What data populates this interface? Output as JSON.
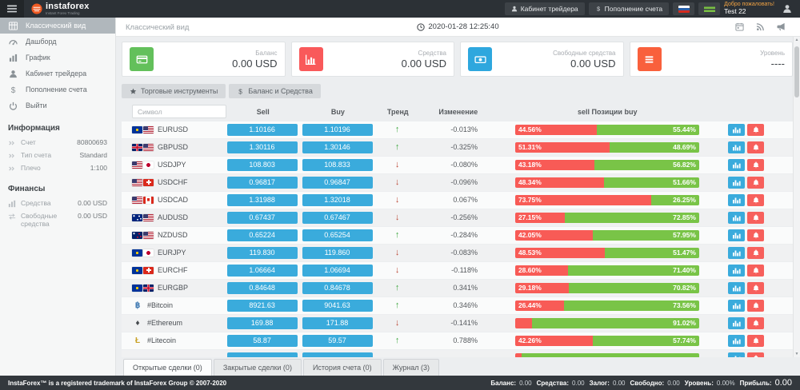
{
  "header": {
    "brand": "instaforex",
    "brand_tagline": "Instant Forex Trading",
    "nav": [
      {
        "label": "Кабинет трейдера",
        "icon": "user-icon"
      },
      {
        "label": "Пополнение счета",
        "icon": "dollar-icon"
      }
    ],
    "flags": [
      {
        "name": "flag-russia-icon",
        "css": "flag-ru"
      },
      {
        "name": "flag-green-icon",
        "css": "flag-green"
      }
    ],
    "welcome_title": "Добро пожаловать!",
    "welcome_user": "Test 22"
  },
  "sidebar": {
    "menu": [
      {
        "label": "Классический вид",
        "icon": "grid-icon",
        "active": true
      },
      {
        "label": "Дашборд",
        "icon": "gauge-icon",
        "active": false
      },
      {
        "label": "График",
        "icon": "chart-icon",
        "active": false
      },
      {
        "label": "Кабинет трейдера",
        "icon": "user-icon",
        "active": false
      },
      {
        "label": "Пополнение счета",
        "icon": "dollar-icon",
        "active": false
      },
      {
        "label": "Выйти",
        "icon": "power-icon",
        "active": false
      }
    ],
    "sections": [
      {
        "title": "Информация",
        "rows": [
          {
            "icon": "chevrons-icon",
            "label": "Счет",
            "value": "80800693"
          },
          {
            "icon": "chevrons-icon",
            "label": "Тип счета",
            "value": "Standard"
          },
          {
            "icon": "chevrons-icon",
            "label": "Плечо",
            "value": "1:100"
          }
        ]
      },
      {
        "title": "Финансы",
        "rows": [
          {
            "icon": "chart-mini-icon",
            "label": "Средства",
            "value": "0.00 USD"
          },
          {
            "icon": "exchange-mini-icon",
            "label": "Свободные средства",
            "value": "0.00 USD"
          }
        ]
      }
    ]
  },
  "topbar": {
    "title": "Классический вид",
    "datetime": "2020-01-28 12:25:40",
    "icons": [
      "calendar-icon",
      "rss-icon",
      "megaphone-icon"
    ]
  },
  "cards": [
    {
      "label": "Баланс",
      "value": "0.00 USD",
      "icon": "credit-card-icon",
      "color": "#63c05b"
    },
    {
      "label": "Средства",
      "value": "0.00 USD",
      "icon": "bar-chart-icon",
      "color": "#f9595a"
    },
    {
      "label": "Свободные средства",
      "value": "0.00 USD",
      "icon": "banknote-icon",
      "color": "#2ea7de"
    },
    {
      "label": "Уровень",
      "value": "----",
      "icon": "menu-icon",
      "color": "#f9603c"
    }
  ],
  "filters": [
    {
      "label": "Торговые инструменты",
      "icon": "star-icon"
    },
    {
      "label": "Баланс и Средства",
      "icon": "dollar-icon"
    }
  ],
  "table": {
    "search_placeholder": "Символ",
    "col_sell": "Sell",
    "col_buy": "Buy",
    "col_trend": "Тренд",
    "col_change": "Изменение",
    "col_positions": "sell Позиции buy",
    "rows": [
      {
        "symbol": "EURUSD",
        "flags": [
          "eu",
          "us"
        ],
        "crypto": "",
        "sell": "1.10166",
        "buy": "1.10196",
        "trend": "up",
        "change": "-0.013%",
        "sell_pct": 44.56,
        "buy_pct": 55.44,
        "sell_label": "44.56%",
        "buy_label": "55.44%"
      },
      {
        "symbol": "GBPUSD",
        "flags": [
          "gb",
          "us"
        ],
        "crypto": "",
        "sell": "1.30116",
        "buy": "1.30146",
        "trend": "up",
        "change": "-0.325%",
        "sell_pct": 51.31,
        "buy_pct": 48.69,
        "sell_label": "51.31%",
        "buy_label": "48.69%"
      },
      {
        "symbol": "USDJPY",
        "flags": [
          "us",
          "jp"
        ],
        "crypto": "",
        "sell": "108.803",
        "buy": "108.833",
        "trend": "down",
        "change": "-0.080%",
        "sell_pct": 43.18,
        "buy_pct": 56.82,
        "sell_label": "43.18%",
        "buy_label": "56.82%"
      },
      {
        "symbol": "USDCHF",
        "flags": [
          "us",
          "ch"
        ],
        "crypto": "",
        "sell": "0.96817",
        "buy": "0.96847",
        "trend": "down",
        "change": "-0.096%",
        "sell_pct": 48.34,
        "buy_pct": 51.66,
        "sell_label": "48.34%",
        "buy_label": "51.66%"
      },
      {
        "symbol": "USDCAD",
        "flags": [
          "us",
          "ca"
        ],
        "crypto": "",
        "sell": "1.31988",
        "buy": "1.32018",
        "trend": "down",
        "change": "0.067%",
        "sell_pct": 73.75,
        "buy_pct": 26.25,
        "sell_label": "73.75%",
        "buy_label": "26.25%"
      },
      {
        "symbol": "AUDUSD",
        "flags": [
          "au",
          "us"
        ],
        "crypto": "",
        "sell": "0.67437",
        "buy": "0.67467",
        "trend": "down",
        "change": "-0.256%",
        "sell_pct": 27.15,
        "buy_pct": 72.85,
        "sell_label": "27.15%",
        "buy_label": "72.85%"
      },
      {
        "symbol": "NZDUSD",
        "flags": [
          "nz",
          "us"
        ],
        "crypto": "",
        "sell": "0.65224",
        "buy": "0.65254",
        "trend": "up",
        "change": "-0.284%",
        "sell_pct": 42.05,
        "buy_pct": 57.95,
        "sell_label": "42.05%",
        "buy_label": "57.95%"
      },
      {
        "symbol": "EURJPY",
        "flags": [
          "eu",
          "jp"
        ],
        "crypto": "",
        "sell": "119.830",
        "buy": "119.860",
        "trend": "down",
        "change": "-0.083%",
        "sell_pct": 48.53,
        "buy_pct": 51.47,
        "sell_label": "48.53%",
        "buy_label": "51.47%"
      },
      {
        "symbol": "EURCHF",
        "flags": [
          "eu",
          "ch"
        ],
        "crypto": "",
        "sell": "1.06664",
        "buy": "1.06694",
        "trend": "down",
        "change": "-0.118%",
        "sell_pct": 28.6,
        "buy_pct": 71.4,
        "sell_label": "28.60%",
        "buy_label": "71.40%"
      },
      {
        "symbol": "EURGBP",
        "flags": [
          "eu",
          "gb"
        ],
        "crypto": "",
        "sell": "0.84648",
        "buy": "0.84678",
        "trend": "up",
        "change": "0.341%",
        "sell_pct": 29.18,
        "buy_pct": 70.82,
        "sell_label": "29.18%",
        "buy_label": "70.82%"
      },
      {
        "symbol": "#Bitcoin",
        "flags": [],
        "crypto": "btc",
        "sell": "8921.63",
        "buy": "9041.63",
        "trend": "up",
        "change": "0.346%",
        "sell_pct": 26.44,
        "buy_pct": 73.56,
        "sell_label": "26.44%",
        "buy_label": "73.56%"
      },
      {
        "symbol": "#Ethereum",
        "flags": [],
        "crypto": "eth",
        "sell": "169.88",
        "buy": "171.88",
        "trend": "down",
        "change": "-0.141%",
        "sell_pct": 8.98,
        "buy_pct": 91.02,
        "sell_label": "",
        "buy_label": "91.02%"
      },
      {
        "symbol": "#Litecoin",
        "flags": [],
        "crypto": "ltc",
        "sell": "58.87",
        "buy": "59.57",
        "trend": "up",
        "change": "0.788%",
        "sell_pct": 42.26,
        "buy_pct": 57.74,
        "sell_label": "42.26%",
        "buy_label": "57.74%"
      },
      {
        "symbol": "",
        "flags": [],
        "crypto": "",
        "sell": "",
        "buy": "",
        "trend": "",
        "change": "",
        "sell_pct": 3.5,
        "buy_pct": 96.5,
        "sell_label": "",
        "buy_label": ""
      }
    ]
  },
  "tabs": [
    {
      "label": "Открытые сделки (0)",
      "active": true
    },
    {
      "label": "Закрытые сделки (0)",
      "active": false
    },
    {
      "label": "История счета (0)",
      "active": false
    },
    {
      "label": "Журнал (3)",
      "active": false
    }
  ],
  "footer": {
    "copyright": "InstaForex™ is a registered trademark of InstaForex Group © 2007-2020",
    "stats": [
      {
        "label": "Баланс:",
        "value": "0.00",
        "big": false
      },
      {
        "label": "Средства:",
        "value": "0.00",
        "big": false
      },
      {
        "label": "Залог:",
        "value": "0.00",
        "big": false
      },
      {
        "label": "Свободно:",
        "value": "0.00",
        "big": false
      },
      {
        "label": "Уровень:",
        "value": "0.00%",
        "big": false
      },
      {
        "label": "Прибыль:",
        "value": "0.00",
        "big": true
      }
    ]
  }
}
